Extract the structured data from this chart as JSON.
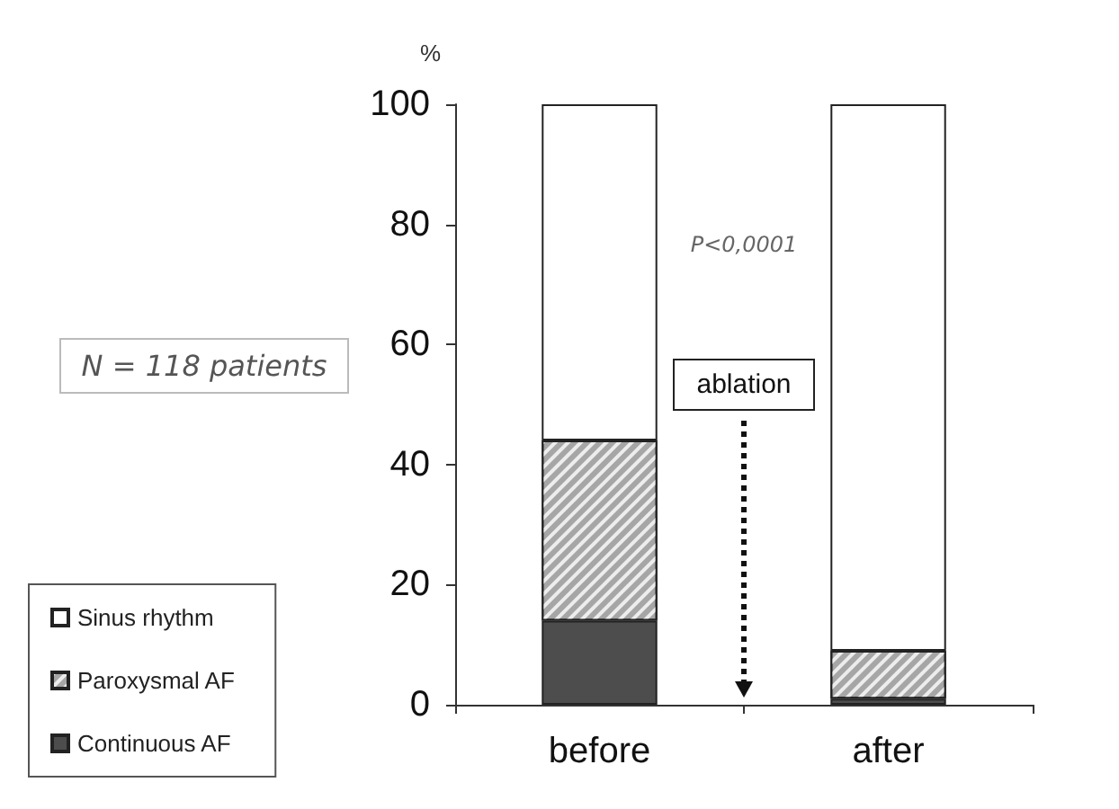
{
  "chart_data": {
    "type": "bar",
    "stacked": true,
    "ylabel": "%",
    "categories": [
      "before",
      "after"
    ],
    "series": [
      {
        "name": "Continuous AF",
        "color": "#4d4d4d",
        "values": [
          14,
          1
        ]
      },
      {
        "name": "Paroxysmal AF",
        "color": "#a6a6a6",
        "values": [
          30,
          8
        ]
      },
      {
        "name": "Sinus rhythm",
        "color": "#ffffff",
        "values": [
          56,
          91
        ]
      }
    ],
    "ylim": [
      0,
      100
    ],
    "yticks": [
      0,
      20,
      40,
      60,
      80,
      100
    ],
    "grid": false,
    "legend": "bottom left",
    "annotations": [
      "N = 118 patients",
      "P<0,0001",
      "ablation"
    ]
  }
}
